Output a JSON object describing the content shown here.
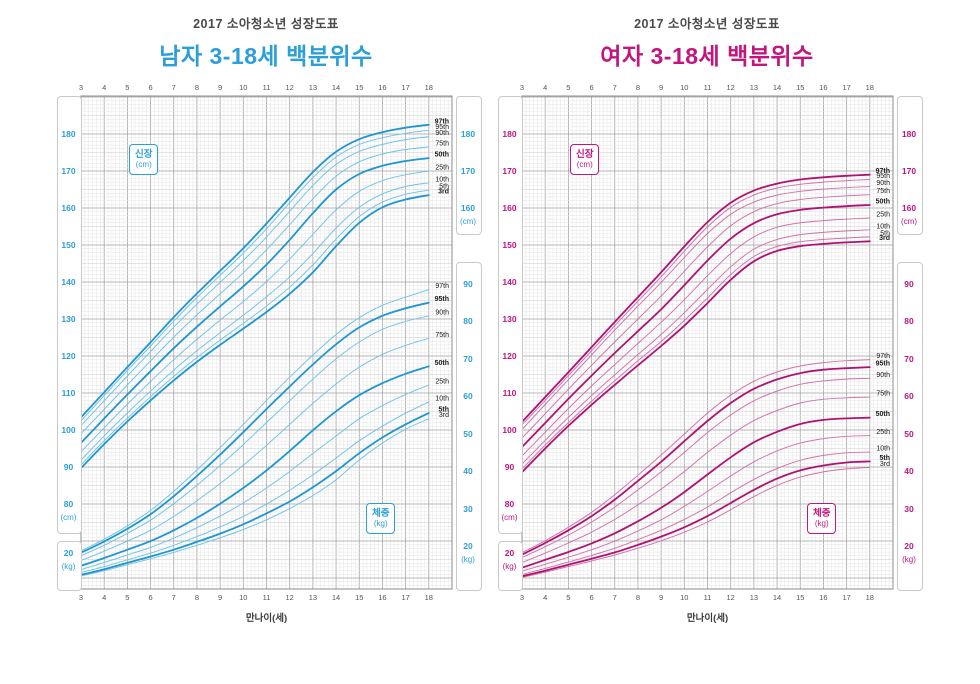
{
  "units": {
    "cm": "(cm)",
    "kg": "(kg)"
  },
  "x_axis": {
    "label": "만나이(세)",
    "ticks": [
      3,
      4,
      5,
      6,
      7,
      8,
      9,
      10,
      11,
      12,
      13,
      14,
      15,
      16,
      17,
      18
    ]
  },
  "axes": {
    "left_cm_ticks": [
      180,
      170,
      160,
      150,
      140,
      130,
      120,
      110,
      100,
      90,
      80
    ],
    "left_kg_ticks": [
      20
    ],
    "right_cm_ticks": [
      180,
      170,
      160
    ],
    "right_kg_ticks": [
      90,
      80,
      70,
      60,
      50,
      40,
      30,
      20
    ]
  },
  "chart_data": [
    {
      "type": "line",
      "gender": "male",
      "title": "2017 소아청소년 성장도표",
      "subtitle": "남자 3-18세 백분위수",
      "xlabel": "만나이(세)",
      "accent": "#2b9fd8",
      "curve_thick": "#1d96d2",
      "curve_thin": "#6fc3e8",
      "x": [
        3,
        4,
        5,
        6,
        7,
        8,
        9,
        10,
        11,
        12,
        13,
        14,
        15,
        16,
        17,
        18
      ],
      "height": {
        "tag": "신장",
        "unit": "(cm)",
        "axis_range_labels": [
          80,
          180
        ],
        "bold": [
          "3rd",
          "50th",
          "97th"
        ],
        "series": [
          {
            "name": "3rd",
            "values": [
              89.7,
              96.2,
              102.3,
              108.0,
              113.4,
              118.4,
              123.0,
              127.4,
              131.9,
              136.8,
              142.6,
              149.7,
              156.0,
              160.2,
              162.3,
              163.5
            ]
          },
          {
            "name": "5th",
            "values": [
              90.6,
              97.1,
              103.2,
              109.0,
              114.5,
              119.6,
              124.3,
              128.8,
              133.5,
              138.6,
              144.6,
              151.6,
              157.7,
              161.6,
              163.7,
              164.8
            ]
          },
          {
            "name": "10th",
            "values": [
              91.9,
              98.4,
              104.6,
              110.5,
              116.2,
              121.4,
              126.3,
              131.0,
              136.0,
              141.4,
              147.7,
              154.6,
              160.2,
              163.8,
              165.8,
              166.8
            ]
          },
          {
            "name": "25th",
            "values": [
              94.1,
              100.6,
              107.0,
              113.1,
              119.0,
              124.5,
              129.7,
              134.7,
              140.1,
              146.2,
              152.9,
              159.5,
              164.5,
              167.4,
              169.0,
              170.0
            ]
          },
          {
            "name": "50th",
            "values": [
              96.5,
              103.1,
              109.6,
              115.9,
              122.1,
              127.9,
              133.4,
              138.8,
              144.7,
              151.4,
              158.6,
              165.0,
              169.2,
              171.4,
              172.7,
              173.5
            ]
          },
          {
            "name": "75th",
            "values": [
              99.0,
              105.6,
              112.2,
              118.7,
              125.1,
              131.1,
              136.8,
              142.5,
              148.7,
              155.5,
              162.5,
              168.6,
              172.5,
              174.6,
              175.8,
              176.5
            ]
          },
          {
            "name": "90th",
            "values": [
              101.2,
              107.9,
              114.6,
              121.2,
              127.8,
              134.0,
              139.9,
              145.8,
              152.2,
              159.1,
              166.1,
              171.8,
              175.3,
              177.2,
              178.5,
              179.3
            ]
          },
          {
            "name": "95th",
            "values": [
              102.5,
              109.3,
              116.1,
              122.7,
              129.4,
              135.8,
              141.8,
              147.8,
              154.4,
              161.4,
              168.2,
              173.8,
              177.2,
              179.0,
              180.2,
              181.0
            ]
          },
          {
            "name": "97th",
            "values": [
              103.4,
              110.2,
              117.0,
              123.7,
              130.5,
              136.9,
              143.0,
              149.1,
              155.8,
              162.8,
              169.7,
              175.2,
              178.6,
              180.5,
              181.7,
              182.5
            ]
          }
        ]
      },
      "weight": {
        "tag": "체중",
        "unit": "(kg)",
        "axis_range_labels": [
          20,
          90
        ],
        "bold": [
          "5th",
          "50th",
          "95th"
        ],
        "series": [
          {
            "name": "3rd",
            "values": [
              12.0,
              13.4,
              15.0,
              16.6,
              18.3,
              20.2,
              22.2,
              24.4,
              27.0,
              30.0,
              33.5,
              37.7,
              43.0,
              47.5,
              51.2,
              54.0
            ]
          },
          {
            "name": "5th",
            "values": [
              12.3,
              13.8,
              15.5,
              17.2,
              19.0,
              21.1,
              23.3,
              25.8,
              28.7,
              31.9,
              35.7,
              40.0,
              44.8,
              49.0,
              52.5,
              55.5
            ]
          },
          {
            "name": "10th",
            "values": [
              12.9,
              14.5,
              16.3,
              18.1,
              20.2,
              22.5,
              25.1,
              27.9,
              31.2,
              34.9,
              39.0,
              43.5,
              48.1,
              52.0,
              55.5,
              58.5
            ]
          },
          {
            "name": "25th",
            "values": [
              13.7,
              15.6,
              17.6,
              19.6,
              22.1,
              24.9,
              28.0,
              31.5,
              35.5,
              39.9,
              44.7,
              49.4,
              54.0,
              57.5,
              60.5,
              63.0
            ]
          },
          {
            "name": "50th",
            "values": [
              14.7,
              16.8,
              19.0,
              21.3,
              24.2,
              27.5,
              31.3,
              35.5,
              40.2,
              45.4,
              50.9,
              56.0,
              60.3,
              63.5,
              66.0,
              68.0
            ]
          },
          {
            "name": "75th",
            "values": [
              16.1,
              18.6,
              21.3,
              24.2,
              27.9,
              32.1,
              36.7,
              41.6,
              46.9,
              52.5,
              58.1,
              63.3,
              67.8,
              71.2,
              73.6,
              75.5
            ]
          },
          {
            "name": "90th",
            "values": [
              17.4,
              20.2,
              23.4,
              26.9,
              31.3,
              36.2,
              41.5,
              47.1,
              53.0,
              58.8,
              64.6,
              70.0,
              74.5,
              77.9,
              80.0,
              81.5
            ]
          },
          {
            "name": "95th",
            "values": [
              18.2,
              21.2,
              24.6,
              28.5,
              33.3,
              38.7,
              44.4,
              50.4,
              56.6,
              62.6,
              68.5,
              73.9,
              78.4,
              81.5,
              83.5,
              85.0
            ]
          },
          {
            "name": "97th",
            "values": [
              18.7,
              21.8,
              25.4,
              29.5,
              34.6,
              40.3,
              46.3,
              52.5,
              58.9,
              65.1,
              71.0,
              76.5,
              81.0,
              84.3,
              86.5,
              88.5
            ]
          }
        ]
      }
    },
    {
      "type": "line",
      "gender": "female",
      "title": "2017 소아청소년 성장도표",
      "subtitle": "여자 3-18세 백분위수",
      "xlabel": "만나이(세)",
      "accent": "#c2157d",
      "curve_thick": "#b01274",
      "curve_thin": "#d470ab",
      "x": [
        3,
        4,
        5,
        6,
        7,
        8,
        9,
        10,
        11,
        12,
        13,
        14,
        15,
        16,
        17,
        18
      ],
      "height": {
        "tag": "신장",
        "unit": "(cm)",
        "axis_range_labels": [
          80,
          180
        ],
        "bold": [
          "3rd",
          "50th",
          "97th"
        ],
        "series": [
          {
            "name": "3rd",
            "values": [
              88.6,
              95.0,
              101.1,
              106.8,
              112.2,
              117.5,
              122.7,
              128.2,
              134.3,
              140.6,
              145.6,
              148.4,
              149.7,
              150.3,
              150.7,
              151.0
            ]
          },
          {
            "name": "5th",
            "values": [
              89.5,
              95.9,
              102.0,
              107.8,
              113.3,
              118.7,
              123.9,
              129.6,
              135.7,
              142.0,
              146.9,
              149.6,
              150.9,
              151.5,
              151.9,
              152.2
            ]
          },
          {
            "name": "10th",
            "values": [
              90.8,
              97.2,
              103.4,
              109.3,
              114.9,
              120.4,
              125.8,
              131.7,
              138.0,
              144.1,
              148.9,
              151.5,
              152.8,
              153.4,
              153.8,
              154.1
            ]
          },
          {
            "name": "25th",
            "values": [
              93.0,
              99.4,
              105.8,
              111.9,
              117.7,
              123.4,
              129.1,
              135.2,
              141.7,
              147.7,
              152.2,
              154.8,
              156.0,
              156.6,
              157.0,
              157.3
            ]
          },
          {
            "name": "50th",
            "values": [
              95.4,
              101.9,
              108.4,
              114.7,
              120.8,
              126.7,
              132.6,
              139.1,
              145.8,
              151.7,
              155.9,
              158.3,
              159.5,
              160.1,
              160.5,
              160.8
            ]
          },
          {
            "name": "75th",
            "values": [
              97.8,
              104.4,
              111.0,
              117.5,
              123.8,
              130.0,
              136.2,
              142.9,
              149.5,
              155.2,
              159.0,
              161.2,
              162.3,
              162.9,
              163.3,
              163.6
            ]
          },
          {
            "name": "90th",
            "values": [
              100.1,
              106.9,
              113.6,
              120.3,
              127.0,
              133.5,
              139.9,
              146.6,
              153.1,
              158.3,
              161.6,
              163.5,
              164.5,
              165.1,
              165.5,
              165.8
            ]
          },
          {
            "name": "95th",
            "values": [
              101.4,
              108.0,
              114.7,
              121.4,
              128.2,
              134.8,
              141.4,
              148.3,
              154.9,
              160.2,
              163.5,
              165.4,
              166.4,
              167.0,
              167.4,
              167.7
            ]
          },
          {
            "name": "97th",
            "values": [
              102.2,
              108.9,
              115.6,
              122.4,
              129.2,
              135.9,
              142.6,
              149.6,
              156.2,
              161.4,
              164.7,
              166.6,
              167.7,
              168.3,
              168.7,
              169.0
            ]
          }
        ]
      },
      "weight": {
        "tag": "체중",
        "unit": "(kg)",
        "axis_range_labels": [
          20,
          90
        ],
        "bold": [
          "5th",
          "50th",
          "95th"
        ],
        "series": [
          {
            "name": "3rd",
            "values": [
              11.6,
              13.0,
              14.5,
              16.0,
              17.6,
              19.4,
              21.4,
              23.7,
              26.4,
              29.7,
              33.2,
              36.2,
              38.4,
              39.8,
              40.6,
              41.0
            ]
          },
          {
            "name": "5th",
            "values": [
              11.9,
              13.4,
              15.0,
              16.6,
              18.3,
              20.3,
              22.5,
              25.0,
              28.0,
              31.5,
              35.0,
              38.0,
              40.2,
              41.5,
              42.3,
              42.6
            ]
          },
          {
            "name": "10th",
            "values": [
              12.4,
              14.0,
              15.7,
              17.5,
              19.4,
              21.7,
              24.2,
              27.1,
              30.4,
              34.2,
              37.8,
              40.7,
              42.9,
              44.2,
              44.9,
              45.1
            ]
          },
          {
            "name": "25th",
            "values": [
              13.3,
              15.1,
              17.0,
              19.0,
              21.3,
              24.0,
              27.0,
              30.6,
              34.6,
              38.7,
              42.5,
              45.4,
              47.5,
              48.7,
              49.3,
              49.5
            ]
          },
          {
            "name": "50th",
            "values": [
              14.2,
              16.3,
              18.4,
              20.7,
              23.4,
              26.6,
              30.2,
              34.4,
              39.1,
              43.7,
              47.7,
              50.5,
              52.6,
              53.7,
              54.1,
              54.3
            ]
          },
          {
            "name": "75th",
            "values": [
              15.6,
              18.1,
              20.8,
              23.7,
              27.1,
              31.0,
              35.2,
              39.9,
              45.0,
              49.6,
              53.5,
              56.2,
              58.2,
              59.2,
              59.6,
              59.8
            ]
          },
          {
            "name": "90th",
            "values": [
              16.9,
              19.8,
              22.9,
              26.4,
              30.4,
              35.0,
              39.8,
              45.0,
              50.3,
              55.0,
              58.8,
              61.4,
              63.2,
              64.1,
              64.6,
              64.8
            ]
          },
          {
            "name": "95th",
            "values": [
              17.7,
              20.8,
              24.2,
              28.0,
              32.4,
              37.4,
              42.5,
              48.0,
              53.4,
              58.2,
              62.0,
              64.5,
              66.2,
              67.1,
              67.5,
              67.8
            ]
          },
          {
            "name": "97th",
            "values": [
              18.2,
              21.4,
              25.0,
              29.0,
              33.7,
              38.9,
              44.3,
              49.9,
              55.5,
              60.3,
              64.0,
              66.5,
              68.1,
              69.0,
              69.5,
              69.8
            ]
          }
        ]
      }
    }
  ]
}
